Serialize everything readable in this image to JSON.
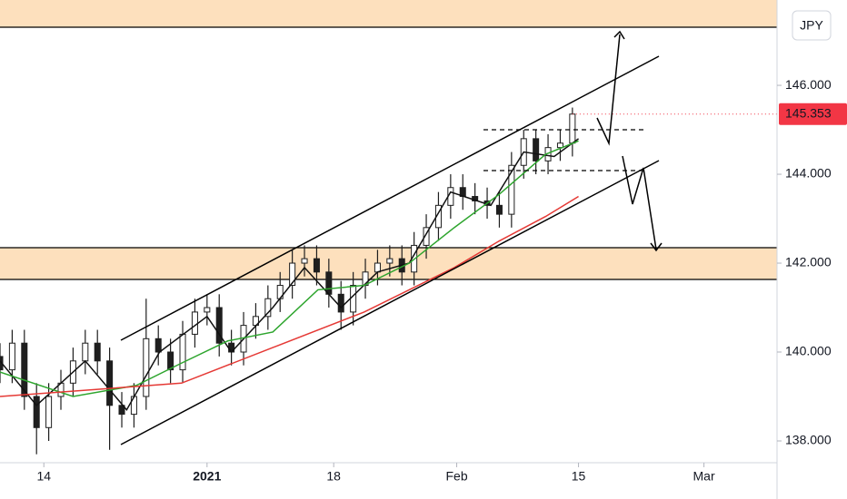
{
  "chart_data": {
    "type": "candlestick",
    "currency": "JPY",
    "last_price": 145.353,
    "candle_color": "#1e1e1e",
    "x": [
      0,
      1,
      2,
      3,
      4,
      5,
      6,
      7,
      8,
      9,
      10,
      11,
      12,
      13,
      14,
      15,
      16,
      17,
      18,
      19,
      20,
      21,
      22,
      23,
      24,
      25,
      26,
      27,
      28,
      29,
      30,
      31,
      32,
      33,
      34,
      35,
      36,
      37,
      38,
      39,
      40,
      41,
      42,
      43,
      44,
      45,
      46,
      47
    ],
    "open": [
      139.9,
      139.6,
      140.2,
      139.0,
      138.3,
      139.0,
      139.3,
      139.8,
      140.2,
      139.8,
      138.8,
      138.6,
      139.0,
      140.3,
      140.0,
      139.6,
      140.4,
      140.9,
      141.0,
      140.2,
      140.0,
      140.6,
      140.8,
      141.2,
      141.5,
      142.0,
      142.1,
      141.8,
      141.3,
      140.9,
      141.5,
      141.8,
      142.0,
      142.1,
      141.8,
      142.4,
      142.8,
      143.3,
      143.7,
      143.5,
      143.4,
      143.3,
      143.1,
      144.2,
      144.8,
      144.3,
      144.6,
      144.7
    ],
    "high": [
      140.2,
      140.5,
      140.5,
      139.3,
      139.3,
      139.6,
      140.1,
      140.5,
      140.5,
      140.1,
      139.1,
      139.3,
      141.2,
      140.6,
      140.3,
      140.7,
      141.2,
      141.3,
      141.3,
      140.5,
      140.9,
      141.1,
      141.5,
      141.8,
      142.3,
      142.4,
      142.4,
      142.1,
      141.6,
      141.8,
      142.1,
      142.3,
      142.4,
      142.4,
      142.7,
      143.1,
      143.6,
      144.0,
      144.0,
      143.8,
      143.7,
      143.6,
      144.5,
      145.0,
      145.0,
      144.9,
      145.0,
      145.5
    ],
    "low": [
      139.3,
      139.3,
      138.7,
      137.7,
      138.0,
      138.7,
      139.0,
      139.5,
      139.5,
      137.8,
      138.3,
      138.3,
      138.7,
      139.7,
      139.3,
      139.3,
      140.1,
      140.6,
      139.9,
      139.7,
      139.7,
      140.3,
      140.5,
      140.9,
      141.2,
      141.7,
      141.5,
      141.0,
      140.5,
      140.6,
      141.2,
      141.5,
      141.7,
      141.5,
      141.5,
      142.1,
      142.5,
      143.0,
      143.2,
      143.1,
      143.0,
      142.8,
      142.8,
      143.9,
      144.0,
      144.0,
      144.3,
      144.4
    ],
    "close": [
      139.6,
      140.2,
      139.0,
      138.3,
      139.0,
      139.3,
      139.8,
      140.2,
      139.8,
      138.8,
      138.6,
      139.0,
      140.3,
      140.0,
      139.6,
      140.4,
      140.9,
      141.0,
      140.2,
      140.0,
      140.6,
      140.8,
      141.2,
      141.5,
      142.0,
      142.1,
      141.8,
      141.3,
      140.9,
      141.5,
      141.8,
      142.0,
      142.1,
      141.8,
      142.4,
      142.8,
      143.3,
      143.7,
      143.5,
      143.4,
      143.3,
      143.1,
      144.2,
      144.8,
      144.3,
      144.6,
      144.7,
      145.353
    ],
    "lines": [
      {
        "color": "#111111",
        "x": [
          0,
          3,
          7,
          10.4,
          13.1,
          17,
          19,
          22.4,
          25,
          28,
          31,
          33.6,
          37,
          40.3,
          43,
          45.5,
          47.5
        ],
        "values": [
          139.8,
          138.8,
          139.8,
          138.7,
          140.0,
          140.8,
          140.0,
          141.0,
          141.9,
          141.0,
          141.8,
          142.0,
          143.6,
          143.3,
          144.5,
          144.4,
          144.8
        ]
      },
      {
        "color": "#2ea52e",
        "x": [
          0,
          6,
          11.2,
          14.9,
          18.7,
          22.4,
          26.1,
          29.9,
          33.6,
          37.3,
          41,
          44.8,
          47.5
        ],
        "values": [
          139.55,
          139.0,
          139.25,
          139.75,
          140.25,
          140.45,
          141.4,
          141.5,
          142.0,
          142.8,
          143.55,
          144.45,
          144.75
        ]
      },
      {
        "color": "#e53935",
        "x": [
          0,
          14.9,
          22.4,
          29.9,
          33.6,
          37.3,
          41,
          44.8,
          47.5
        ],
        "values": [
          139.0,
          139.3,
          140.1,
          140.9,
          141.4,
          141.9,
          142.5,
          143.05,
          143.5
        ]
      }
    ],
    "xlim": [
      0,
      63.8
    ],
    "ylim": [
      137.51,
      147.92
    ],
    "xticks": [
      {
        "value": 3.6,
        "label": "14"
      },
      {
        "value": 17.0,
        "label": "2021"
      },
      {
        "value": 27.4,
        "label": "18"
      },
      {
        "value": 37.5,
        "label": "Feb"
      },
      {
        "value": 47.5,
        "label": "15"
      },
      {
        "value": 57.8,
        "label": "Mar"
      }
    ],
    "yticks": [
      {
        "value": 138,
        "label": "138.000"
      },
      {
        "value": 140,
        "label": "140.000"
      },
      {
        "value": 142,
        "label": "142.000"
      },
      {
        "value": 144,
        "label": "144.000"
      },
      {
        "value": 146,
        "label": "146.000"
      }
    ]
  }
}
